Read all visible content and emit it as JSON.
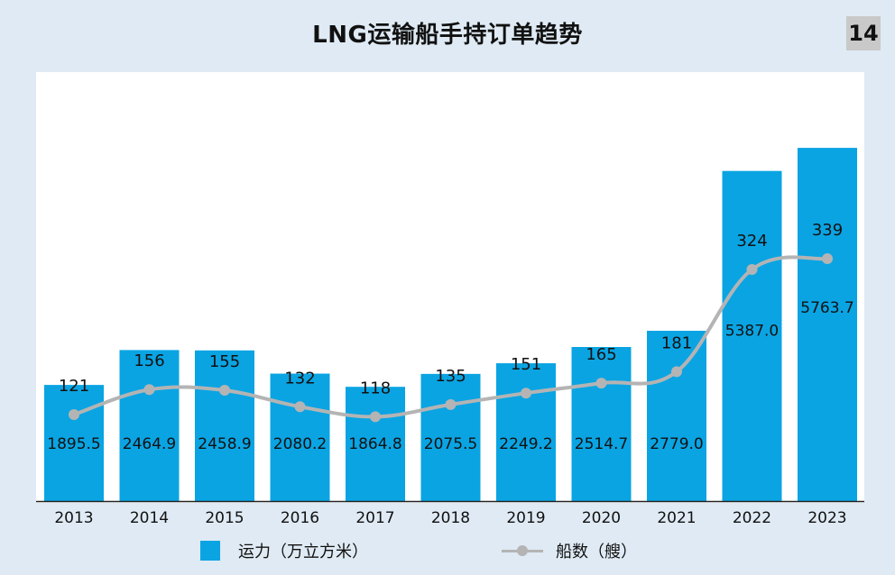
{
  "title": "LNG运输船手持订单趋势",
  "page_number": "14",
  "colors": {
    "bar": "#0aa4e3",
    "line": "#b4b4b4",
    "background": "#dfeaf4",
    "plot_background": "#ffffff"
  },
  "chart_data": {
    "type": "bar",
    "title": "LNG运输船手持订单趋势",
    "categories": [
      "2013",
      "2014",
      "2015",
      "2016",
      "2017",
      "2018",
      "2019",
      "2020",
      "2021",
      "2022",
      "2023"
    ],
    "series": [
      {
        "name": "运力（万立方米）",
        "type": "bar",
        "values": [
          1895.5,
          2464.9,
          2458.9,
          2080.2,
          1864.8,
          2075.5,
          2249.2,
          2514.7,
          2779.0,
          5387.0,
          5763.7
        ],
        "labels": [
          "1895.5",
          "2464.9",
          "2458.9",
          "2080.2",
          "1864.8",
          "2075.5",
          "2249.2",
          "2514.7",
          "2779.0",
          "5387.0",
          "5763.7"
        ]
      },
      {
        "name": "船数（艘）",
        "type": "line",
        "values": [
          121,
          156,
          155,
          132,
          118,
          135,
          151,
          165,
          181,
          324,
          339
        ],
        "labels": [
          "121",
          "156",
          "155",
          "132",
          "118",
          "135",
          "151",
          "165",
          "181",
          "324",
          "339"
        ]
      }
    ],
    "ylim_bar": [
      0,
      7000
    ],
    "ylim_line": [
      0,
      600
    ],
    "grid": false,
    "legend_position": "bottom"
  },
  "legend": {
    "bar_label": "运力（万立方米）",
    "line_label": "船数（艘）"
  }
}
